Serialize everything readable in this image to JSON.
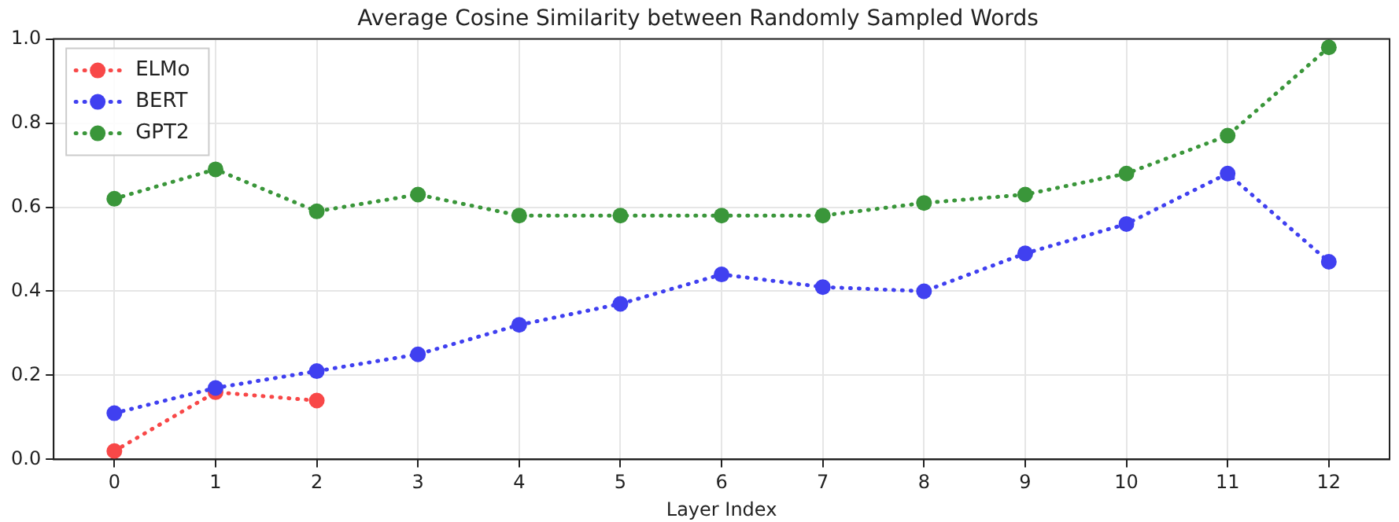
{
  "chart_data": {
    "type": "line",
    "title": "Average Cosine Similarity between Randomly Sampled Words",
    "xlabel": "Layer Index",
    "x": [
      0,
      1,
      2,
      3,
      4,
      5,
      6,
      7,
      8,
      9,
      10,
      11,
      12
    ],
    "series": [
      {
        "name": "ELMo",
        "color": "#f84848",
        "x": [
          0,
          1,
          2
        ],
        "values": [
          0.02,
          0.16,
          0.14
        ]
      },
      {
        "name": "BERT",
        "color": "#4040f0",
        "values": [
          0.11,
          0.17,
          0.21,
          0.25,
          0.32,
          0.37,
          0.44,
          0.41,
          0.4,
          0.49,
          0.56,
          0.68,
          0.47
        ]
      },
      {
        "name": "GPT2",
        "color": "#3a963a",
        "values": [
          0.62,
          0.69,
          0.59,
          0.63,
          0.58,
          0.58,
          0.58,
          0.58,
          0.61,
          0.63,
          0.68,
          0.77,
          0.98
        ]
      }
    ],
    "xlim": [
      -0.6,
      12.6
    ],
    "xticks": [
      0,
      1,
      2,
      3,
      4,
      5,
      6,
      7,
      8,
      9,
      10,
      11,
      12
    ],
    "ylim": [
      0,
      1
    ],
    "yticks": [
      {
        "value": 0,
        "label": "0.0"
      },
      {
        "value": 0.2,
        "label": "0.2"
      },
      {
        "value": 0.4,
        "label": "0.4"
      },
      {
        "value": 0.6,
        "label": "0.6"
      },
      {
        "value": 0.8,
        "label": "0.8"
      },
      {
        "value": 1,
        "label": "1.0"
      }
    ],
    "grid": true,
    "legend": "top left",
    "marker": "circle",
    "line_style": "dotted"
  }
}
